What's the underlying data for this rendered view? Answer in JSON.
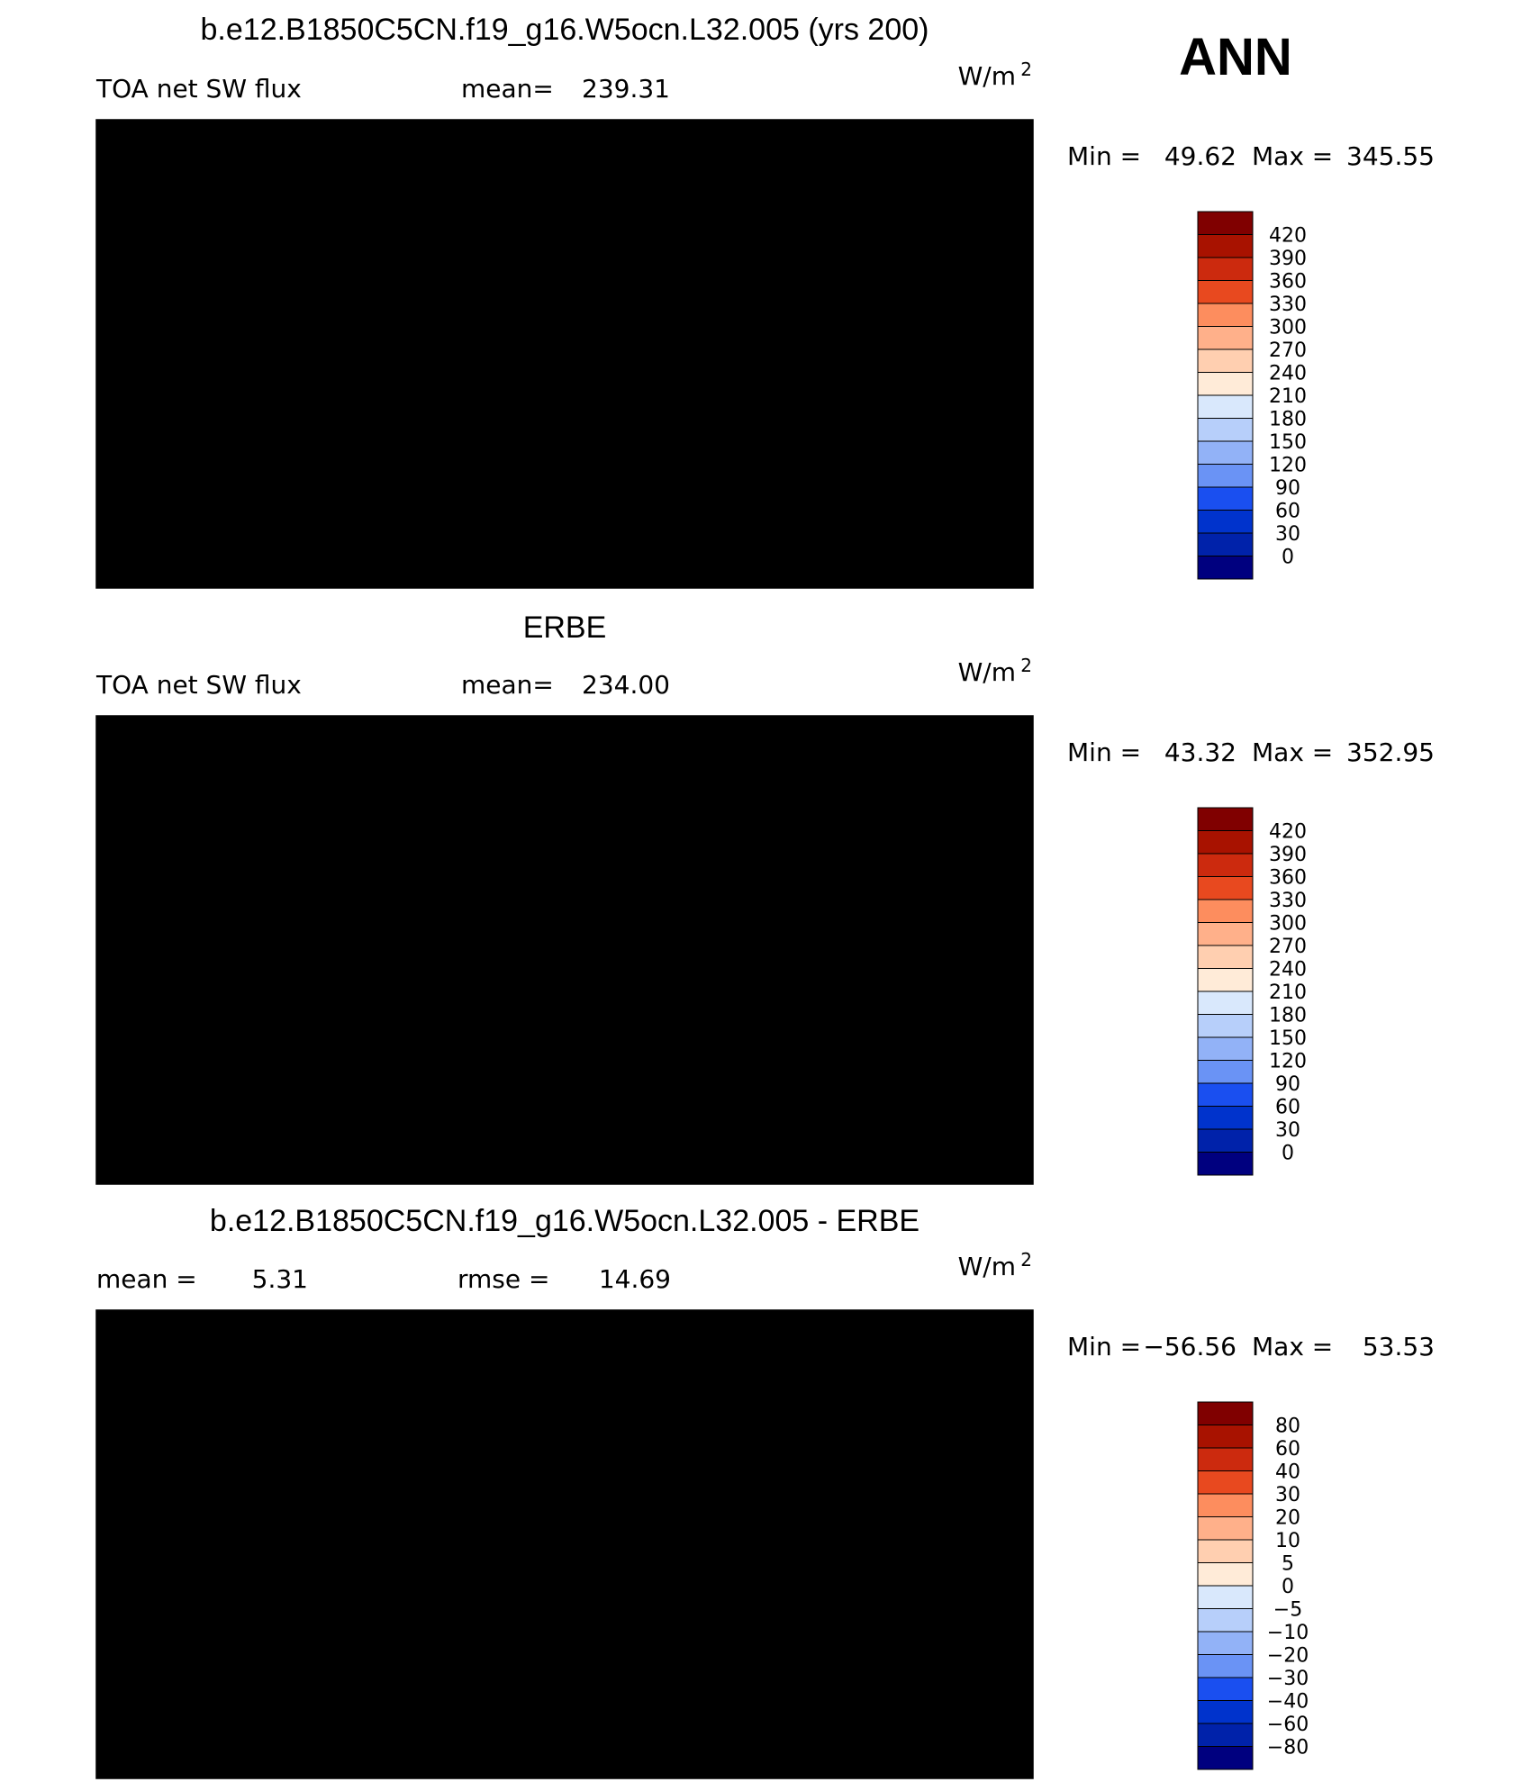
{
  "season": "ANN",
  "colors": {
    "abs_scale": [
      "#00007f",
      "#0022aa",
      "#0033cc",
      "#1a4ff0",
      "#3f6ff2",
      "#6a93f5",
      "#92b2f7",
      "#b7cffa",
      "#d9e8fc",
      "#ffebd8",
      "#ffcfb0",
      "#ffb08a",
      "#fd8d5e",
      "#f96a3a",
      "#e8491f",
      "#cc2a0e",
      "#a81200",
      "#800000"
    ],
    "diff_scale": [
      "#00007f",
      "#0022aa",
      "#0033cc",
      "#1a4ff0",
      "#3f6ff2",
      "#6a93f5",
      "#92b2f7",
      "#b7cffa",
      "#d9e8fc",
      "#ffebd8",
      "#ffcfb0",
      "#ffb08a",
      "#fd8d5e",
      "#f96a3a",
      "#e8491f",
      "#cc2a0e",
      "#a81200",
      "#800000"
    ],
    "coast": "#000000"
  },
  "chart_data": [
    {
      "type": "heatmap",
      "title": "b.e12.B1850C5CN.f19_g16.W5ocn.L32.005 (yrs 200)",
      "variable": "TOA net SW flux",
      "stat_label": "mean=",
      "stat_value": "239.31",
      "units_base": "W/m",
      "units_exp": "2",
      "min_label": "Min  =",
      "min_value": "49.62",
      "max_label": "Max  =",
      "max_value": "345.55",
      "colorbar_levels": [
        "420",
        "390",
        "360",
        "330",
        "300",
        "270",
        "240",
        "210",
        "180",
        "150",
        "120",
        "90",
        "60",
        "30",
        "0"
      ],
      "field": "abs"
    },
    {
      "type": "heatmap",
      "title": "ERBE",
      "variable": "TOA net SW flux",
      "stat_label": "mean=",
      "stat_value": "234.00",
      "units_base": "W/m",
      "units_exp": "2",
      "min_label": "Min  =",
      "min_value": "43.32",
      "max_label": "Max  =",
      "max_value": "352.95",
      "colorbar_levels": [
        "420",
        "390",
        "360",
        "330",
        "300",
        "270",
        "240",
        "210",
        "180",
        "150",
        "120",
        "90",
        "60",
        "30",
        "0"
      ],
      "field": "abs"
    },
    {
      "type": "heatmap",
      "title": "b.e12.B1850C5CN.f19_g16.W5ocn.L32.005 - ERBE",
      "stat_label": "mean  =",
      "stat_value": "5.31",
      "stat2_label": "rmse  =",
      "stat2_value": "14.69",
      "units_base": "W/m",
      "units_exp": "2",
      "min_label": "Min  =",
      "min_value": "−56.56",
      "max_label": "Max  =",
      "max_value": "53.53",
      "colorbar_levels": [
        "80",
        "60",
        "40",
        "30",
        "20",
        "10",
        "5",
        "0",
        "−5",
        "−10",
        "−20",
        "−30",
        "−40",
        "−60",
        "−80"
      ],
      "field": "diff"
    }
  ]
}
